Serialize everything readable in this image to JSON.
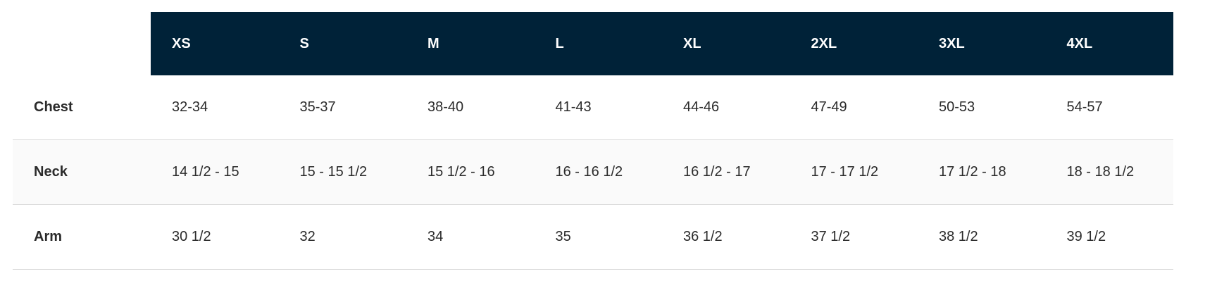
{
  "table": {
    "header": [
      "XS",
      "S",
      "M",
      "L",
      "XL",
      "2XL",
      "3XL",
      "4XL"
    ],
    "rows": [
      {
        "label": "Chest",
        "cells": [
          "32-34",
          "35-37",
          "38-40",
          "41-43",
          "44-46",
          "47-49",
          "50-53",
          "54-57"
        ]
      },
      {
        "label": "Neck",
        "cells": [
          "14 1/2 - 15",
          "15 - 15 1/2",
          "15 1/2 - 16",
          "16 - 16 1/2",
          "16 1/2 - 17",
          "17 - 17 1/2",
          "17 1/2 - 18",
          "18 - 18 1/2"
        ]
      },
      {
        "label": "Arm",
        "cells": [
          "30 1/2",
          "32",
          "34",
          "35",
          "36 1/2",
          "37 1/2",
          "38 1/2",
          "39 1/2"
        ]
      }
    ]
  }
}
